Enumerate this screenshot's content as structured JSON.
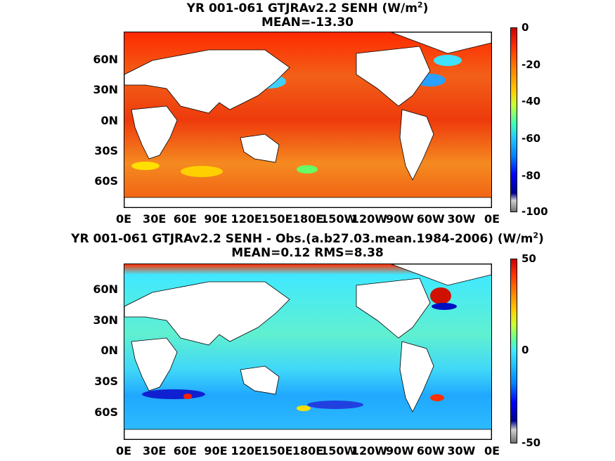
{
  "panels": [
    {
      "title_line1_prefix": "YR 001-061 GTJRAv2.2  SENH (W/m",
      "title_sup": "2",
      "title_line1_suffix": ")",
      "title_line2": "MEAN=-13.30",
      "colorbar_labels": [
        "0",
        "-20",
        "-40",
        "-60",
        "-80",
        "-100"
      ]
    },
    {
      "title_line1_prefix": "YR 001-061 GTJRAv2.2 SENH - Obs.(a.b27.03.mean.1984-2006) (W/m",
      "title_sup": "2",
      "title_line1_suffix": ")",
      "title_line2": "MEAN=0.12 RMS=8.38",
      "colorbar_labels": [
        "50",
        "0",
        "-50"
      ]
    }
  ],
  "lat_labels": [
    "60N",
    "30N",
    "0N",
    "30S",
    "60S"
  ],
  "lon_labels": [
    "0E",
    "30E",
    "60E",
    "90E",
    "120E",
    "150E",
    "180E",
    "150W",
    "120W",
    "90W",
    "60W",
    "30W",
    "0E"
  ],
  "colors": {
    "ocean_top": "#ee4a10",
    "ocean_bottom": "#3fd9f0",
    "land": "#ffffff"
  }
}
